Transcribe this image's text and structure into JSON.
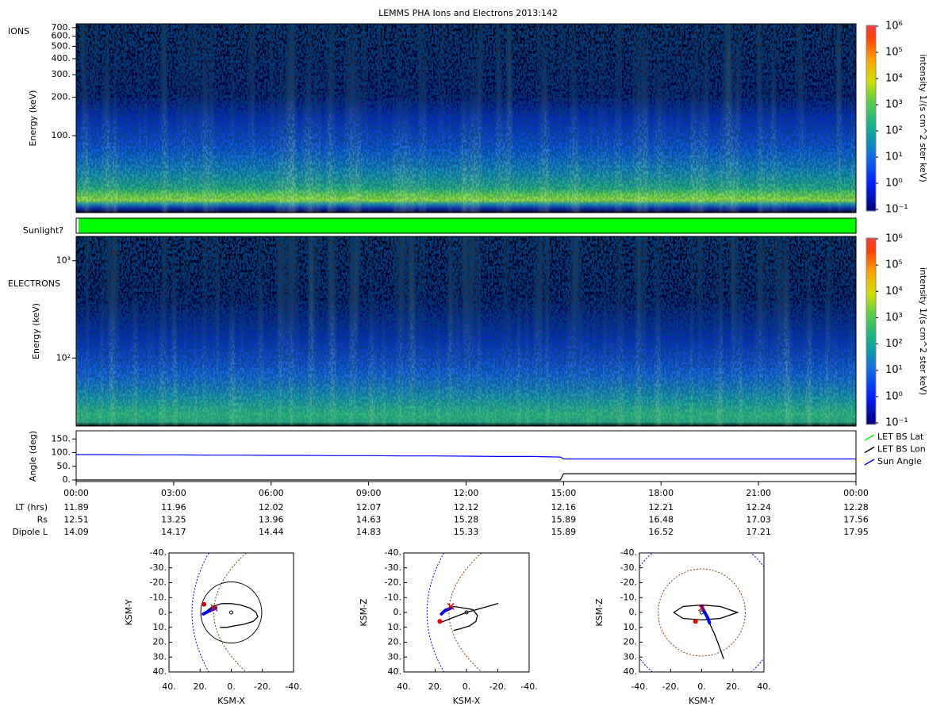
{
  "title": "LEMMS PHA Ions and Electrons  2013:142",
  "chart_data": [
    {
      "type": "spectrogram",
      "label": "IONS",
      "ylabel": "Energy (keV)",
      "ylog": true,
      "ylim": [
        25,
        750
      ],
      "yticks": [
        {
          "value": 100,
          "label": "100."
        },
        {
          "value": 200,
          "label": "200."
        },
        {
          "value": 300,
          "label": "300."
        },
        {
          "value": 400,
          "label": "400."
        },
        {
          "value": 500,
          "label": "500."
        },
        {
          "value": 600,
          "label": "600."
        },
        {
          "value": 700,
          "label": "700."
        }
      ],
      "colorbar": {
        "label": "intensity 1/(s cm^2 ster keV)",
        "log": true,
        "lim": [
          0.1,
          1000000
        ],
        "ticks": [
          {
            "value": 0.1,
            "label": "10⁻¹"
          },
          {
            "value": 1,
            "label": "10⁰"
          },
          {
            "value": 10,
            "label": "10¹"
          },
          {
            "value": 100,
            "label": "10²"
          },
          {
            "value": 1000,
            "label": "10³"
          },
          {
            "value": 10000,
            "label": "10⁴"
          },
          {
            "value": 100000,
            "label": "10⁵"
          },
          {
            "value": 1000000,
            "label": "10⁶"
          }
        ]
      }
    },
    {
      "type": "status",
      "label": "Sunlight?",
      "color": "#00ff00"
    },
    {
      "type": "spectrogram",
      "label": "ELECTRONS",
      "ylabel": "Energy (keV)",
      "ylog": true,
      "ylim": [
        20,
        1780
      ],
      "yticks": [
        {
          "value": 100,
          "label": "10²"
        },
        {
          "value": 1000,
          "label": "10³"
        }
      ],
      "colorbar": {
        "label": "intensity 1/(s cm^2 ster keV)",
        "log": true,
        "lim": [
          0.1,
          1000000
        ],
        "ticks": [
          {
            "value": 0.1,
            "label": "10⁻¹"
          },
          {
            "value": 1,
            "label": "10⁰"
          },
          {
            "value": 10,
            "label": "10¹"
          },
          {
            "value": 100,
            "label": "10²"
          },
          {
            "value": 1000,
            "label": "10³"
          },
          {
            "value": 10000,
            "label": "10⁴"
          },
          {
            "value": 100000,
            "label": "10⁵"
          },
          {
            "value": 1000000,
            "label": "10⁶"
          }
        ]
      }
    },
    {
      "type": "line",
      "ylabel": "Angle (deg)",
      "ylim": [
        0,
        180
      ],
      "yticks": [
        {
          "value": 0,
          "label": "0."
        },
        {
          "value": 50,
          "label": "50."
        },
        {
          "value": 100,
          "label": "100."
        },
        {
          "value": 150,
          "label": "150."
        }
      ],
      "xlim": [
        0,
        24
      ],
      "xticks": [
        {
          "value": 0,
          "label": "00:00"
        },
        {
          "value": 3,
          "label": "03:00"
        },
        {
          "value": 6,
          "label": "06:00"
        },
        {
          "value": 9,
          "label": "09:00"
        },
        {
          "value": 12,
          "label": "12:00"
        },
        {
          "value": 15,
          "label": "15:00"
        },
        {
          "value": 18,
          "label": "18:00"
        },
        {
          "value": 21,
          "label": "21:00"
        },
        {
          "value": 24,
          "label": "00:00"
        }
      ],
      "x": [
        0,
        1,
        2,
        3,
        4,
        5,
        6,
        7,
        8,
        9,
        10,
        11,
        12,
        13,
        14,
        14.9,
        15,
        16,
        17,
        18,
        19,
        20,
        21,
        22,
        23,
        24
      ],
      "series": [
        {
          "name": "LET BS Lat",
          "color": "#00ff00",
          "values": [
            null,
            null,
            null,
            null,
            null,
            null,
            null,
            null,
            null,
            null,
            null,
            null,
            null,
            null,
            null,
            null,
            null,
            null,
            null,
            null,
            null,
            null,
            null,
            null,
            null,
            null
          ]
        },
        {
          "name": "LET BS Lon",
          "color": "#000000",
          "values": [
            0,
            0,
            0,
            0,
            0,
            0,
            0,
            0,
            0,
            0,
            0,
            0,
            0,
            0,
            0,
            0,
            23,
            23,
            23,
            23,
            23,
            23,
            23,
            23,
            23,
            23
          ]
        },
        {
          "name": "Sun Angle",
          "color": "#0000ff",
          "values": [
            93,
            93,
            92,
            92,
            91,
            91,
            90,
            90,
            89,
            89,
            88,
            88,
            87,
            86,
            86,
            84,
            77,
            77,
            77,
            77,
            77,
            77,
            77,
            77,
            77,
            77
          ]
        }
      ],
      "table": [
        {
          "label": "LT (hrs)",
          "values": [
            11.89,
            11.96,
            12.02,
            12.07,
            12.12,
            12.16,
            12.21,
            12.24,
            12.28
          ]
        },
        {
          "label": "Rs",
          "values": [
            12.51,
            13.25,
            13.96,
            14.63,
            15.28,
            15.89,
            16.48,
            17.03,
            17.56
          ]
        },
        {
          "label": "Dipole L",
          "values": [
            14.09,
            14.17,
            14.44,
            14.83,
            15.33,
            15.89,
            16.52,
            17.21,
            17.95
          ]
        }
      ]
    },
    {
      "type": "orbit",
      "xlabel": "KSM-X",
      "ylabel": "KSM-Y",
      "xlim": [
        40,
        -40
      ],
      "ylim": [
        -40,
        40
      ],
      "xticks": [
        {
          "value": 40,
          "label": "40."
        },
        {
          "value": 20,
          "label": "20."
        },
        {
          "value": 0,
          "label": "0."
        },
        {
          "value": -20,
          "label": "-20."
        },
        {
          "value": -40,
          "label": "-40."
        }
      ],
      "yticks": [
        {
          "value": -40,
          "label": "-40."
        },
        {
          "value": -30,
          "label": "-30."
        },
        {
          "value": -20,
          "label": "-20."
        },
        {
          "value": -10,
          "label": "-10."
        },
        {
          "value": 0,
          "label": "0."
        },
        {
          "value": 10,
          "label": "10."
        },
        {
          "value": 20,
          "label": "20."
        },
        {
          "value": 30,
          "label": "30."
        },
        {
          "value": 40,
          "label": "40."
        }
      ],
      "series": [
        {
          "color": "#000000",
          "x": [
            17,
            12,
            6,
            0,
            -6,
            -12,
            -16,
            -17,
            -14,
            -8,
            -2,
            3,
            7
          ],
          "y": [
            0,
            -4,
            -6,
            -6,
            -5,
            -3,
            0,
            3,
            6,
            8,
            9,
            10,
            10
          ]
        },
        {
          "color": "#0000ff",
          "x": [
            18,
            16,
            14,
            12,
            10
          ],
          "y": [
            1,
            0,
            -1,
            -2,
            -3
          ]
        }
      ],
      "markers": [
        {
          "shape": "dot",
          "color": "#e00000",
          "x": 17.5,
          "y": -5.5
        },
        {
          "shape": "cross",
          "color": "#e00000",
          "x": 11,
          "y": -3
        }
      ]
    },
    {
      "type": "orbit",
      "xlabel": "KSM-X",
      "ylabel": "KSM-Z",
      "xlim": [
        40,
        -40
      ],
      "ylim": [
        -40,
        40
      ],
      "xticks": [
        {
          "value": 40,
          "label": "40."
        },
        {
          "value": 20,
          "label": "20."
        },
        {
          "value": 0,
          "label": "0."
        },
        {
          "value": -20,
          "label": "-20."
        },
        {
          "value": -40,
          "label": "-40."
        }
      ],
      "yticks": [
        {
          "value": -40,
          "label": "-40."
        },
        {
          "value": -30,
          "label": "-30."
        },
        {
          "value": -20,
          "label": "-20."
        },
        {
          "value": -10,
          "label": "-10."
        },
        {
          "value": 0,
          "label": "0."
        },
        {
          "value": 10,
          "label": "10."
        },
        {
          "value": 20,
          "label": "20."
        },
        {
          "value": 30,
          "label": "30."
        },
        {
          "value": 40,
          "label": "40."
        }
      ],
      "series": [
        {
          "color": "#000000",
          "x": [
            17,
            10,
            0,
            -10,
            -20,
            null,
            14,
            8,
            2,
            -4,
            -7,
            -6,
            -2,
            4,
            8
          ],
          "y": [
            7,
            4,
            0,
            -3,
            -6,
            null,
            -2,
            -4,
            -3,
            -2,
            2,
            6,
            9,
            11,
            12
          ]
        },
        {
          "color": "#0000ff",
          "x": [
            16,
            14,
            12,
            10
          ],
          "y": [
            1,
            -1,
            -2,
            -3
          ]
        }
      ],
      "markers": [
        {
          "shape": "dot",
          "color": "#e00000",
          "x": 17,
          "y": 6
        },
        {
          "shape": "cross",
          "color": "#e00000",
          "x": 10,
          "y": -4
        }
      ]
    },
    {
      "type": "orbit",
      "xlabel": "KSM-Y",
      "ylabel": "KSM-Z",
      "xlim": [
        -40,
        40
      ],
      "ylim": [
        -40,
        40
      ],
      "xticks": [
        {
          "value": -40,
          "label": "-40."
        },
        {
          "value": -20,
          "label": "-20."
        },
        {
          "value": 0,
          "label": "0."
        },
        {
          "value": 20,
          "label": "20."
        },
        {
          "value": 40,
          "label": "40."
        }
      ],
      "yticks": [
        {
          "value": -40,
          "label": "-40."
        },
        {
          "value": -30,
          "label": "-30."
        },
        {
          "value": -20,
          "label": "-20."
        },
        {
          "value": -10,
          "label": "-10."
        },
        {
          "value": 0,
          "label": "0."
        },
        {
          "value": 10,
          "label": "10."
        },
        {
          "value": 20,
          "label": "20."
        },
        {
          "value": 30,
          "label": "30."
        },
        {
          "value": 40,
          "label": "40."
        }
      ],
      "series": [
        {
          "color": "#000000",
          "x": [
            -18,
            -12,
            0,
            12,
            23,
            12,
            0,
            -12,
            -18,
            null,
            0,
            4,
            8,
            11,
            14
          ],
          "y": [
            0,
            -4,
            -5,
            -4,
            0,
            4,
            5,
            4,
            0,
            null,
            -4,
            5,
            14,
            22,
            31
          ]
        },
        {
          "color": "#0000ff",
          "x": [
            0,
            2,
            4,
            5
          ],
          "y": [
            -4,
            0,
            4,
            7
          ]
        }
      ],
      "markers": [
        {
          "shape": "dot",
          "color": "#e00000",
          "x": -4,
          "y": 6
        },
        {
          "shape": "cross",
          "color": "#e00000",
          "x": 0,
          "y": -3
        }
      ]
    }
  ]
}
